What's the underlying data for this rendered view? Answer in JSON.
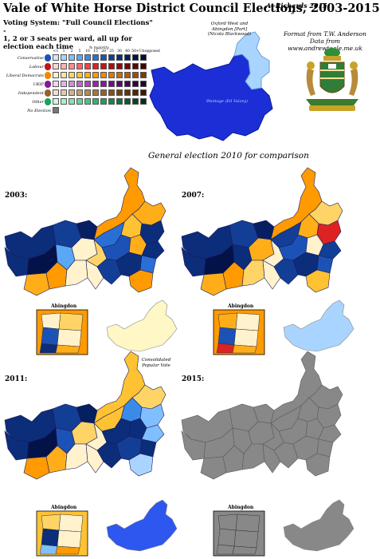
{
  "title": "Vale of White Horse District Council Elections, 2003-2015",
  "author": "A. Richards 2015",
  "source": {
    "line1": "Format from T.W. Anderson",
    "line2": "Data from",
    "line3": "www.andrewteale.me.uk"
  },
  "voting": {
    "line1": "Voting System: \"Full Council Elections\" -",
    "line2": "1, 2 or 3 seats per ward, all up for election each time"
  },
  "legend": {
    "header": "% majority",
    "ticks": [
      "<1",
      "1",
      "2",
      "5",
      "10",
      "15",
      "20",
      "25",
      "30",
      "40",
      "50+",
      "Unopposed"
    ],
    "parties": [
      {
        "name": "Conservative",
        "icon": "tree-icon",
        "colors": [
          "#cfe8ff",
          "#a9d4ff",
          "#80bfff",
          "#5aa8f5",
          "#3a8ae8",
          "#2a6fd6",
          "#1c52b5",
          "#133e96",
          "#0c2d7a",
          "#061f60",
          "#03134a",
          "#020c35"
        ]
      },
      {
        "name": "Labour",
        "icon": "rose-icon",
        "colors": [
          "#ffd6d6",
          "#ffb3b3",
          "#ff8c8c",
          "#ff6666",
          "#f24444",
          "#dd2222",
          "#c21616",
          "#a80f0f",
          "#8f0a0a",
          "#750606",
          "#5c0303",
          "#420101"
        ]
      },
      {
        "name": "Liberal Democrats",
        "icon": "bird-icon",
        "colors": [
          "#fff2cc",
          "#ffe499",
          "#ffd466",
          "#ffc233",
          "#ffae1a",
          "#ff9a00",
          "#f08800",
          "#e07800",
          "#cc6a00",
          "#b55c00",
          "#9e4f00",
          "#7a3c00"
        ]
      },
      {
        "name": "UKIP",
        "icon": "pound-icon",
        "colors": [
          "#f0d6f0",
          "#e3b3e6",
          "#d38cd9",
          "#c266cc",
          "#af44bf",
          "#9b22b0",
          "#84179a",
          "#6f0f84",
          "#5a086e",
          "#460458",
          "#330242",
          "#20002c"
        ]
      },
      {
        "name": "Independent",
        "icon": "star-icon",
        "colors": [
          "#ecdfcf",
          "#dfcab0",
          "#d1b590",
          "#c29f72",
          "#b38a56",
          "#a3763f",
          "#93632d",
          "#82521f",
          "#714214",
          "#60340c",
          "#4f2706",
          "#3d1b02"
        ]
      },
      {
        "name": "Other",
        "icon": "circle-icon",
        "colors": [
          "#d4f5e4",
          "#aeeccb",
          "#86e2b1",
          "#5fd698",
          "#3dca80",
          "#22bb6b",
          "#16a35a",
          "#0f8a4a",
          "#0a733c",
          "#065c2f",
          "#034622",
          "#013016"
        ]
      }
    ],
    "no_election": "No Election",
    "no_election_color": "#777777"
  },
  "parliament": {
    "oxford_label": "Oxford West and Abingdon [Part] (Nicola Blackwood)",
    "wantage_label": "Wantage (Ed Vaizey)",
    "wantage_color": "#1c2fd6",
    "oxford_color": "#a9d4ff"
  },
  "comparison_subtitle": "General election 2010 for comparison",
  "maps": [
    {
      "year": "2003:",
      "abingdon": "Abingdon"
    },
    {
      "year": "2007:",
      "abingdon": "Abingdon"
    },
    {
      "year": "2011:",
      "abingdon": "Abingdon"
    },
    {
      "year": "2015:",
      "abingdon": "Abingdon"
    }
  ],
  "popular_vote_2003": "Consolidated Popular Vote",
  "popular_vote_colors": {
    "2003": "#fff7c6",
    "2007": "#a9d4ff",
    "2011": "#2d57ee",
    "2015": "#888888"
  }
}
